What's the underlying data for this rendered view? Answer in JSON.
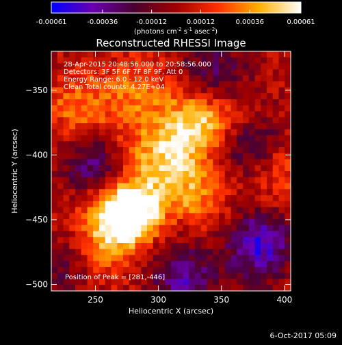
{
  "colorbar": {
    "tick_labels": [
      "-0.00061",
      "-0.00036",
      "-0.00012",
      "0.00012",
      "0.00036",
      "0.00061"
    ],
    "tick_values": [
      -0.00061,
      -0.00036,
      -0.00012,
      0.00012,
      0.00036,
      0.00061
    ],
    "range": [
      -0.00061,
      0.00061
    ],
    "colors": [
      "#0000ff",
      "#6a00b0",
      "#4a0030",
      "#a00000",
      "#ff3000",
      "#ffb000",
      "#ffffff"
    ]
  },
  "units": {
    "prefix": "(photons cm",
    "exp1": "-2",
    "mid1": " s",
    "exp2": "-1",
    "mid2": " asec",
    "exp3": "-2",
    "suffix": ")"
  },
  "title": "Reconstructed RHESSI Image",
  "info_lines": [
    "28-Apr-2015 20:48:56.000 to 20:58:56.000",
    "Detectors: 3F 5F 6F 7F 8F 9F, Att 0",
    "Energy Range: 6.0 - 12.0 keV",
    "Clean     Total counts: 4.27E+04"
  ],
  "peak_text": "Position of Peak = [281,-446]",
  "footer_date": "6-Oct-2017 05:09",
  "chart_data": {
    "type": "heatmap",
    "title": "Reconstructed RHESSI Image",
    "xlabel": "Heliocentric X (arcsec)",
    "ylabel": "Heliocentric Y (arcsec)",
    "xlim": [
      215,
      405
    ],
    "ylim": [
      -505,
      -320
    ],
    "x_ticks": [
      250,
      300,
      350,
      400
    ],
    "y_ticks": [
      -350,
      -400,
      -450,
      -500
    ],
    "peak_position": [
      281,
      -446
    ],
    "grid_resolution": 40,
    "color_range": [
      -0.00061,
      0.00061
    ],
    "features": [
      {
        "x": 281,
        "y": -446,
        "value": 0.00061
      },
      {
        "x": 265,
        "y": -440,
        "value": 0.00045
      },
      {
        "x": 258,
        "y": -470,
        "value": 0.0003
      },
      {
        "x": 330,
        "y": -430,
        "value": 0.0003
      },
      {
        "x": 300,
        "y": -415,
        "value": 0.00028
      },
      {
        "x": 312,
        "y": -390,
        "value": 0.0003
      },
      {
        "x": 330,
        "y": -372,
        "value": 0.00035
      },
      {
        "x": 357,
        "y": -377,
        "value": 0.00025
      },
      {
        "x": 236,
        "y": -362,
        "value": 0.00028
      },
      {
        "x": 282,
        "y": -350,
        "value": 0.00026
      },
      {
        "x": 268,
        "y": -392,
        "value": 0.00018
      },
      {
        "x": 392,
        "y": -410,
        "value": 0.00025
      },
      {
        "x": 252,
        "y": -408,
        "value": -0.00045
      },
      {
        "x": 372,
        "y": -392,
        "value": -0.00045
      },
      {
        "x": 320,
        "y": -495,
        "value": -0.0004
      },
      {
        "x": 380,
        "y": -470,
        "value": -0.0005
      },
      {
        "x": 345,
        "y": -340,
        "value": -0.0003
      },
      {
        "x": 225,
        "y": -485,
        "value": -0.0002
      }
    ]
  }
}
